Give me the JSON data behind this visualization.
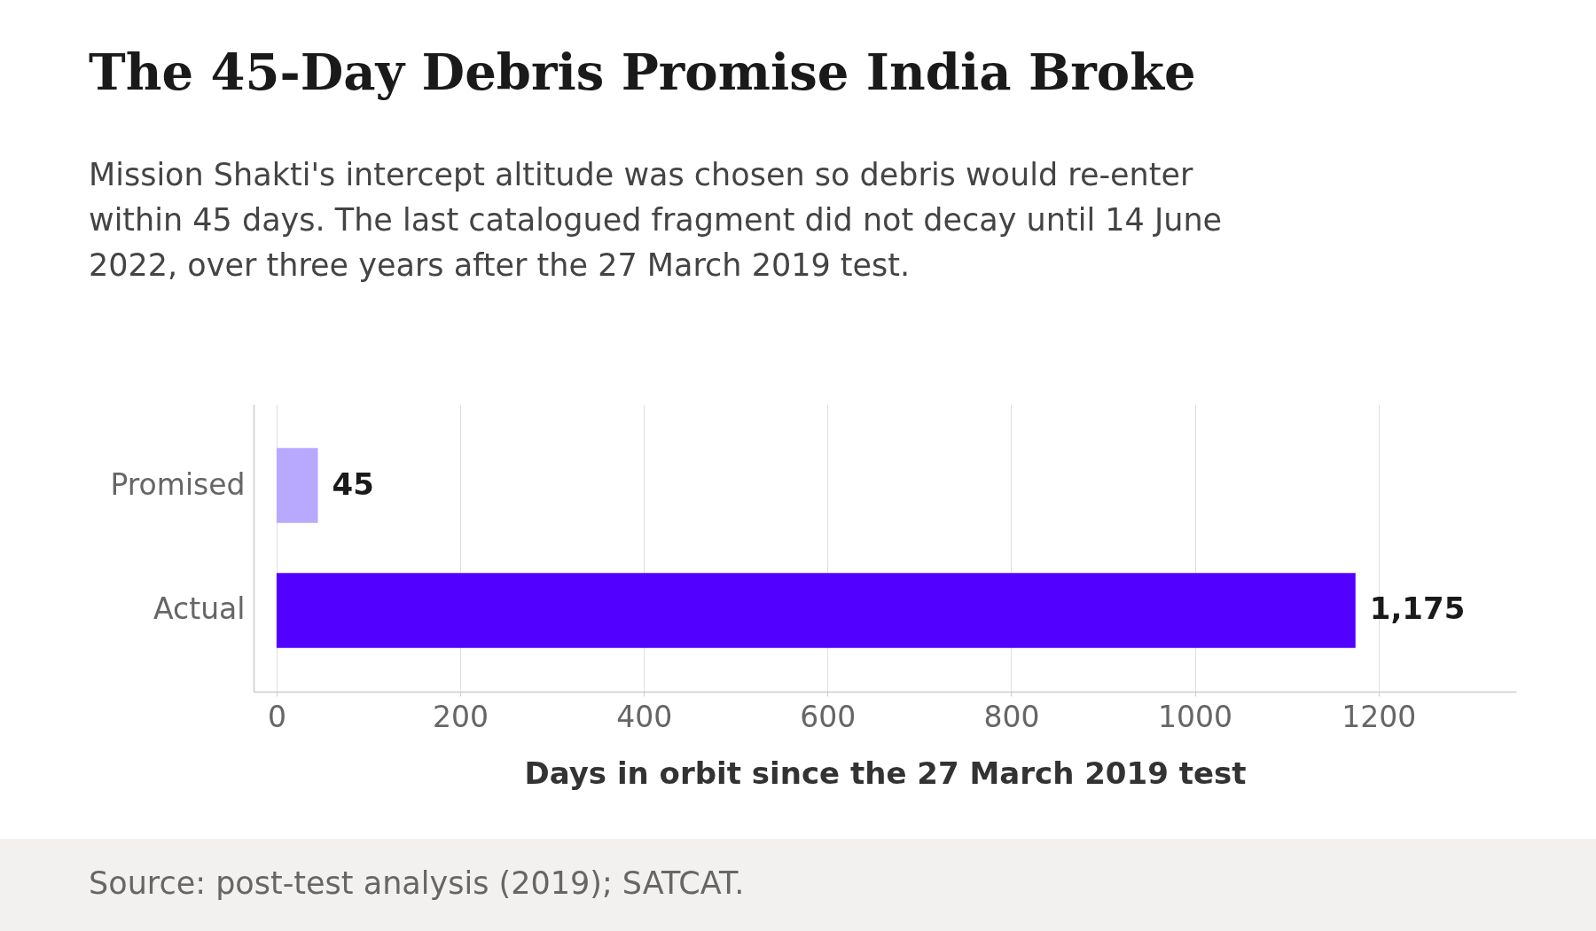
{
  "chart_data": {
    "type": "bar",
    "orientation": "horizontal",
    "title": "The 45-Day Debris Promise India Broke",
    "subtitle": "Mission Shakti's intercept altitude was chosen so debris would re-enter within 45 days. The last catalogued fragment did not decay until 14 June 2022, over three years after the 27 March 2019 test.",
    "categories": [
      "Promised",
      "Actual"
    ],
    "values": [
      45,
      1175
    ],
    "colors": [
      "#b8a9ff",
      "#5200ff"
    ],
    "xlabel": "Days in orbit since the 27 March 2019 test",
    "xlim": [
      -25,
      1350
    ],
    "xticks": [
      0,
      200,
      400,
      600,
      800,
      1000,
      1200
    ],
    "grid": "x",
    "value_labels": [
      "45",
      "1,175"
    ],
    "annotations": [
      "Source: post-test analysis (2019); SATCAT."
    ]
  }
}
